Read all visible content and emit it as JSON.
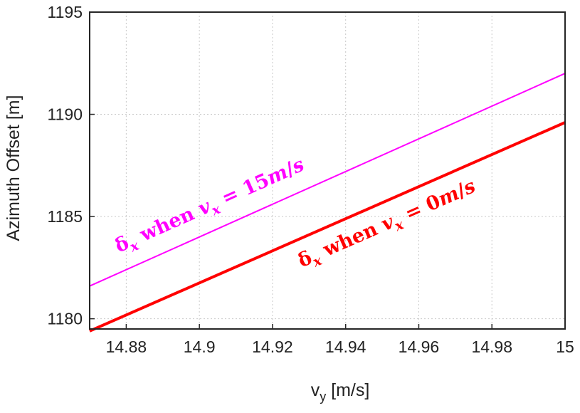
{
  "chart_data": {
    "type": "line",
    "title": "",
    "xlabel": "v",
    "xlabel_sub": "y",
    "xlabel_unit": " [m/s]",
    "ylabel": "Azimuth Offset [m]",
    "xlim": [
      14.87,
      15.0
    ],
    "ylim": [
      1179.5,
      1195
    ],
    "grid": true,
    "xticks": [
      14.88,
      14.9,
      14.92,
      14.94,
      14.96,
      14.98,
      15
    ],
    "xtick_labels": [
      "14.88",
      "14.9",
      "14.92",
      "14.94",
      "14.96",
      "14.98",
      "15"
    ],
    "yticks": [
      1180,
      1185,
      1190,
      1195
    ],
    "ytick_labels": [
      "1180",
      "1185",
      "1190",
      "1195"
    ],
    "series": [
      {
        "label_parts": [
          "δ",
          "x",
          " when ",
          "v",
          "x",
          " = 15",
          "m",
          "/",
          "s"
        ],
        "color": "#ff00ff",
        "x": [
          14.87,
          15.0
        ],
        "y": [
          1181.6,
          1192.0
        ]
      },
      {
        "label_parts": [
          "δ",
          "x",
          " when ",
          "v",
          "x",
          " = 0",
          "m",
          "/",
          "s"
        ],
        "color": "#ff0000",
        "x": [
          14.87,
          15.0
        ],
        "y": [
          1179.4,
          1189.6
        ]
      }
    ]
  }
}
